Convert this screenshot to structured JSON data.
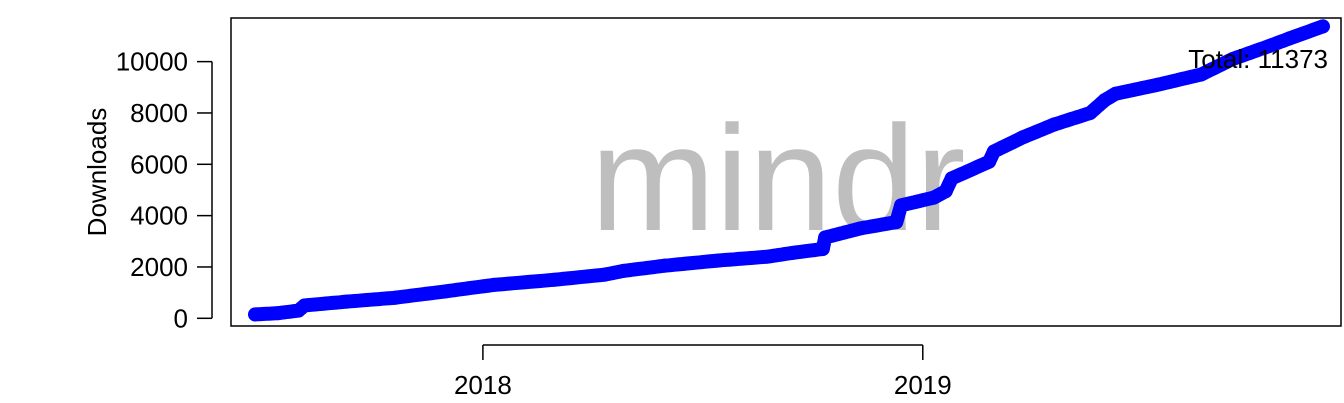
{
  "chart_data": {
    "type": "line",
    "title": "",
    "watermark": "mindr",
    "xlabel": "",
    "ylabel": "Downloads",
    "annotation": "Total: 11373",
    "x_ticks": [
      {
        "label": "2018",
        "date": "2018-01-01"
      },
      {
        "label": "2019",
        "date": "2019-01-01"
      }
    ],
    "y_ticks": [
      0,
      2000,
      4000,
      6000,
      8000,
      10000
    ],
    "y_tick_labels": [
      "0",
      "2000",
      "4000",
      "6000",
      "8000",
      "10000"
    ],
    "xlim": [
      "2017-06-06",
      "2019-12-14"
    ],
    "ylim": [
      -300,
      11700
    ],
    "series": [
      {
        "color": "#0000ff",
        "points": [
          [
            "2017-06-26",
            150
          ],
          [
            "2017-07-15",
            200
          ],
          [
            "2017-08-01",
            300
          ],
          [
            "2017-08-06",
            500
          ],
          [
            "2017-09-10",
            650
          ],
          [
            "2017-10-20",
            800
          ],
          [
            "2017-12-01",
            1050
          ],
          [
            "2018-01-10",
            1300
          ],
          [
            "2018-03-01",
            1500
          ],
          [
            "2018-04-12",
            1700
          ],
          [
            "2018-04-28",
            1850
          ],
          [
            "2018-06-01",
            2050
          ],
          [
            "2018-07-15",
            2250
          ],
          [
            "2018-08-25",
            2400
          ],
          [
            "2018-09-15",
            2550
          ],
          [
            "2018-10-10",
            2700
          ],
          [
            "2018-10-12",
            3150
          ],
          [
            "2018-11-10",
            3500
          ],
          [
            "2018-12-10",
            3750
          ],
          [
            "2018-12-14",
            4400
          ],
          [
            "2019-01-10",
            4700
          ],
          [
            "2019-01-20",
            4950
          ],
          [
            "2019-01-25",
            5450
          ],
          [
            "2019-02-25",
            6100
          ],
          [
            "2019-03-01",
            6500
          ],
          [
            "2019-03-25",
            7050
          ],
          [
            "2019-04-20",
            7550
          ],
          [
            "2019-05-20",
            8000
          ],
          [
            "2019-06-01",
            8500
          ],
          [
            "2019-06-10",
            8750
          ],
          [
            "2019-07-15",
            9100
          ],
          [
            "2019-08-20",
            9500
          ],
          [
            "2019-09-15",
            10100
          ],
          [
            "2019-10-15",
            10600
          ],
          [
            "2019-11-01",
            10900
          ],
          [
            "2019-11-29",
            11373
          ]
        ]
      }
    ]
  }
}
